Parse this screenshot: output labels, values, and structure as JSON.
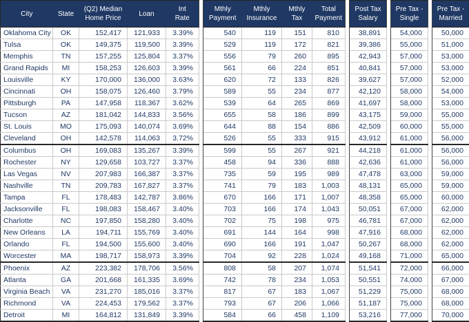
{
  "chart_data": {
    "type": "table",
    "title": "City mortgage and salary comparison table",
    "styles": {
      "header_bg": "#1F3864",
      "header_text": "#FFFFFF",
      "body_text": "#1F3864",
      "grid_line": "#C9C9C9",
      "separator_line": "#404040"
    },
    "columns": [
      {
        "key": "city",
        "label": "City",
        "align": "left"
      },
      {
        "key": "state",
        "label": "State",
        "align": "center"
      },
      {
        "key": "home_price",
        "label": "(Q2) Median\nHome Price",
        "align": "right"
      },
      {
        "key": "loan",
        "label": "Loan",
        "align": "right"
      },
      {
        "key": "int_rate",
        "label": "Int\nRate",
        "align": "right",
        "gap_after": true
      },
      {
        "key": "mthly_payment",
        "label": "Mthly\nPayment",
        "align": "right"
      },
      {
        "key": "mthly_insurance",
        "label": "Mthly\nInsurance",
        "align": "right"
      },
      {
        "key": "mthly_tax",
        "label": "Mthly\nTax",
        "align": "right"
      },
      {
        "key": "total_payment",
        "label": "Total\nPayment",
        "align": "right",
        "gap_after": true
      },
      {
        "key": "post_tax_salary",
        "label": "Post Tax\nSalary",
        "align": "right",
        "gap_after": true
      },
      {
        "key": "pre_tax_single",
        "label": "Pre Tax -\nSingle",
        "align": "right",
        "gap_after": true
      },
      {
        "key": "pre_tax_married",
        "label": "Pre Tax -\nMarried",
        "align": "right"
      }
    ],
    "group_separator_after_rows": [
      9,
      19
    ],
    "rows": [
      [
        "Oklahoma City",
        "OK",
        "152,417",
        "121,933",
        "3.39%",
        "540",
        "119",
        "151",
        "810",
        "38,891",
        "54,000",
        "50,000"
      ],
      [
        "Tulsa",
        "OK",
        "149,375",
        "119,500",
        "3.39%",
        "529",
        "119",
        "172",
        "821",
        "39,386",
        "55,000",
        "51,000"
      ],
      [
        "Memphis",
        "TN",
        "157,255",
        "125,804",
        "3.37%",
        "556",
        "79",
        "260",
        "895",
        "42,943",
        "57,000",
        "53,000"
      ],
      [
        "Grand Rapids",
        "MI",
        "158,253",
        "126,603",
        "3.39%",
        "561",
        "66",
        "224",
        "851",
        "40,841",
        "57,000",
        "53,000"
      ],
      [
        "Louisville",
        "KY",
        "170,000",
        "136,000",
        "3.63%",
        "620",
        "72",
        "133",
        "826",
        "39,627",
        "57,000",
        "52,000"
      ],
      [
        "Cincinnati",
        "OH",
        "158,075",
        "126,460",
        "3.79%",
        "589",
        "55",
        "234",
        "877",
        "42,120",
        "58,000",
        "54,000"
      ],
      [
        "Pittsburgh",
        "PA",
        "147,958",
        "118,367",
        "3.62%",
        "539",
        "64",
        "265",
        "869",
        "41,697",
        "58,000",
        "53,000"
      ],
      [
        "Tucson",
        "AZ",
        "181,042",
        "144,833",
        "3.56%",
        "655",
        "58",
        "186",
        "899",
        "43,175",
        "59,000",
        "55,000"
      ],
      [
        "St. Louis",
        "MO",
        "175,093",
        "140,074",
        "3.69%",
        "644",
        "88",
        "154",
        "886",
        "42,509",
        "60,000",
        "55,000"
      ],
      [
        "Cleveland",
        "OH",
        "142,578",
        "114,063",
        "3.72%",
        "526",
        "55",
        "333",
        "915",
        "43,912",
        "61,000",
        "56,000"
      ],
      [
        "Columbus",
        "OH",
        "169,083",
        "135,267",
        "3.39%",
        "599",
        "55",
        "267",
        "921",
        "44,218",
        "61,000",
        "56,000"
      ],
      [
        "Rochester",
        "NY",
        "129,658",
        "103,727",
        "3.37%",
        "458",
        "94",
        "336",
        "888",
        "42,636",
        "61,000",
        "56,000"
      ],
      [
        "Las Vegas",
        "NV",
        "207,983",
        "166,387",
        "3.37%",
        "735",
        "59",
        "195",
        "989",
        "47,478",
        "63,000",
        "59,000"
      ],
      [
        "Nashville",
        "TN",
        "209,783",
        "167,827",
        "3.37%",
        "741",
        "79",
        "183",
        "1,003",
        "48,131",
        "65,000",
        "59,000"
      ],
      [
        "Tampa",
        "FL",
        "178,483",
        "142,787",
        "3.86%",
        "670",
        "166",
        "171",
        "1,007",
        "48,358",
        "65,000",
        "60,000"
      ],
      [
        "Jacksonville",
        "FL",
        "198,083",
        "158,467",
        "3.40%",
        "703",
        "166",
        "174",
        "1,043",
        "50,051",
        "67,000",
        "62,000"
      ],
      [
        "Charlotte",
        "NC",
        "197,850",
        "158,280",
        "3.40%",
        "702",
        "75",
        "198",
        "975",
        "46,781",
        "67,000",
        "62,000"
      ],
      [
        "New Orleans",
        "LA",
        "194,711",
        "155,769",
        "3.40%",
        "691",
        "144",
        "164",
        "998",
        "47,916",
        "68,000",
        "62,000"
      ],
      [
        "Orlando",
        "FL",
        "194,500",
        "155,600",
        "3.40%",
        "690",
        "166",
        "191",
        "1,047",
        "50,267",
        "68,000",
        "62,000"
      ],
      [
        "Worcester",
        "MA",
        "198,717",
        "158,973",
        "3.39%",
        "704",
        "92",
        "228",
        "1,024",
        "49,168",
        "71,000",
        "65,000"
      ],
      [
        "Phoenix",
        "AZ",
        "223,382",
        "178,706",
        "3.56%",
        "808",
        "58",
        "207",
        "1,074",
        "51,541",
        "72,000",
        "66,000"
      ],
      [
        "Atlanta",
        "GA",
        "201,668",
        "161,335",
        "3.69%",
        "742",
        "78",
        "234",
        "1,053",
        "50,551",
        "74,000",
        "67,000"
      ],
      [
        "Virginia Beach",
        "VA",
        "231,270",
        "185,016",
        "3.37%",
        "817",
        "67",
        "183",
        "1,067",
        "51,229",
        "75,000",
        "68,000"
      ],
      [
        "Richmond",
        "VA",
        "224,453",
        "179,562",
        "3.37%",
        "793",
        "67",
        "206",
        "1,066",
        "51,187",
        "75,000",
        "68,000"
      ],
      [
        "Detroit",
        "MI",
        "164,812",
        "131,849",
        "3.39%",
        "584",
        "66",
        "458",
        "1,109",
        "53,216",
        "77,000",
        "70,000"
      ]
    ]
  }
}
